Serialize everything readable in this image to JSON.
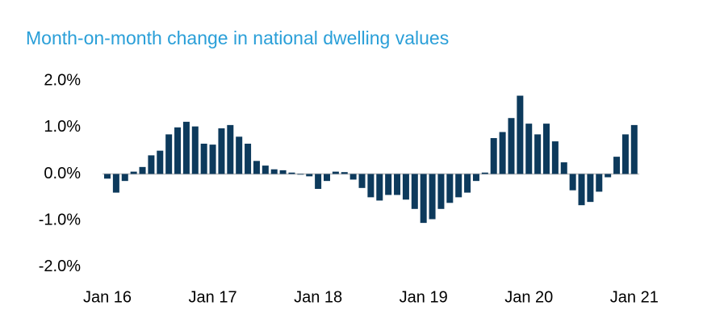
{
  "chart_data": {
    "type": "bar",
    "title": "Month-on-month change in national dwelling values",
    "categories": [
      "Jan 16",
      null,
      null,
      null,
      null,
      null,
      null,
      null,
      null,
      null,
      null,
      null,
      "Jan 17",
      null,
      null,
      null,
      null,
      null,
      null,
      null,
      null,
      null,
      null,
      null,
      "Jan 18",
      null,
      null,
      null,
      null,
      null,
      null,
      null,
      null,
      null,
      null,
      null,
      "Jan 19",
      null,
      null,
      null,
      null,
      null,
      null,
      null,
      null,
      null,
      null,
      null,
      "Jan 20",
      null,
      null,
      null,
      null,
      null,
      null,
      null,
      null,
      null,
      null,
      null,
      "Jan 21"
    ],
    "values": [
      -0.1,
      -0.4,
      -0.15,
      0.05,
      0.15,
      0.4,
      0.5,
      0.85,
      1.0,
      1.12,
      1.02,
      0.65,
      0.63,
      0.98,
      1.05,
      0.8,
      0.65,
      0.28,
      0.18,
      0.1,
      0.08,
      0.03,
      0.0,
      -0.05,
      -0.32,
      -0.15,
      0.05,
      0.04,
      -0.12,
      -0.3,
      -0.5,
      -0.57,
      -0.45,
      -0.45,
      -0.55,
      -0.75,
      -1.05,
      -0.97,
      -0.75,
      -0.62,
      -0.5,
      -0.4,
      -0.15,
      0.03,
      0.77,
      0.9,
      1.2,
      1.68,
      1.08,
      0.85,
      1.08,
      0.7,
      0.25,
      -0.35,
      -0.67,
      -0.6,
      -0.38,
      -0.07,
      0.37,
      0.85,
      1.05
    ],
    "color": "#0d3a5c",
    "ylim": [
      -2.2,
      2.2
    ],
    "yticks": [
      {
        "value": 2,
        "label": "2.0%"
      },
      {
        "value": 1,
        "label": "1.0%"
      },
      {
        "value": 0,
        "label": "0.0%"
      },
      {
        "value": -1,
        "label": "-1.0%"
      },
      {
        "value": -2,
        "label": "-2.0%"
      }
    ]
  }
}
